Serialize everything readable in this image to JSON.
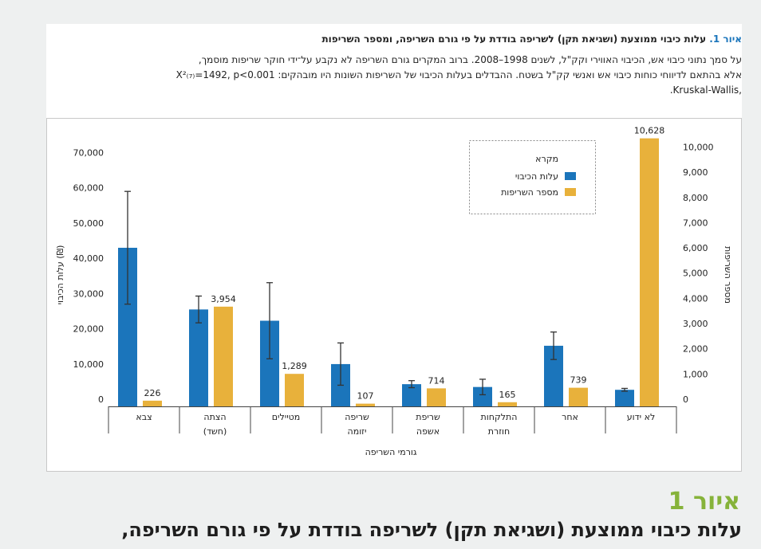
{
  "caption": {
    "label": "איור 1.",
    "title": "עלות כיבוי ממוצעת (ושגיאת תקן) לשריפה בודדת על פי גורם השריפה, ומספר השריפות",
    "lines": [
      "על סמך נתוני כיבוי אש, הכיבוי האווירי וקק\"ל, לשנים 1998–2008. ברוב המקרים גורם השריפה לא נקבע על־ידי חוקר שריפות מוסמך,",
      "אלא בהתאם לדיווחי כוחות כיבוי אש ואנשי קק\"ל בשטח.  ההבדלים בעלות הכיבוי של השריפות השונות היו מובהקים: X²₍₇₎=1492, p<0.001",
      ".Kruskal-Wallis,"
    ]
  },
  "chart_data": {
    "type": "bar",
    "categories": [
      [
        "צבא"
      ],
      [
        "הצתה",
        "(חשד)"
      ],
      [
        "מטיילים"
      ],
      [
        "שריפה",
        "יזומה"
      ],
      [
        "שריפת",
        "אשפה"
      ],
      [
        "התלקחות",
        "חוזרת"
      ],
      [
        "אחר"
      ],
      [
        "לא ידוע"
      ]
    ],
    "series": [
      {
        "name": "עלות הכיבוי",
        "color": "#1b75bb",
        "values": [
          45000,
          27500,
          24300,
          12000,
          6300,
          5500,
          17200,
          4700
        ],
        "errors": [
          16000,
          3800,
          10800,
          6000,
          1000,
          2200,
          3900,
          400
        ]
      },
      {
        "name": "מספר השריפות",
        "color": "#e8b13b",
        "axis": "y2",
        "values": [
          226,
          3954,
          1289,
          107,
          714,
          165,
          739,
          10628
        ],
        "value_labels": [
          "226",
          "3,954",
          "1,289",
          "107",
          "714",
          "165",
          "739",
          "10,628"
        ]
      }
    ],
    "xlabel": "גורמי השריפה",
    "ylabel": "עלות הכיבוי (₪)",
    "y2label": "מספר השריפות",
    "legend_title": "מקרא",
    "legend": "top-right",
    "ylim": [
      0,
      78000
    ],
    "yticks": [
      0,
      {
        "value": 10000,
        "label": "10,000"
      },
      {
        "value": 20000,
        "label": "20,000"
      },
      {
        "value": 30000,
        "label": "30,000"
      },
      {
        "value": 40000,
        "label": "40,000"
      },
      {
        "value": 50000,
        "label": "50,000"
      },
      {
        "value": 60000,
        "label": "60,000"
      },
      {
        "value": 70000,
        "label": "70,000"
      }
    ],
    "y2lim": [
      0,
      10900
    ],
    "y2ticks": [
      0,
      {
        "value": 1000,
        "label": "1,000"
      },
      {
        "value": 2000,
        "label": "2,000"
      },
      {
        "value": 3000,
        "label": "3,000"
      },
      {
        "value": 4000,
        "label": "4,000"
      },
      {
        "value": 5000,
        "label": "5,000"
      },
      {
        "value": 6000,
        "label": "6,000"
      },
      {
        "value": 7000,
        "label": "7,000"
      },
      {
        "value": 8000,
        "label": "8,000"
      },
      {
        "value": 9000,
        "label": "9,000"
      },
      {
        "value": 10000,
        "label": "10,000"
      }
    ],
    "grid": false
  },
  "footer": {
    "label": "איור 1",
    "heading": "עלות כיבוי ממוצעת (ושגיאת תקן) לשריפה בודדת על פי גורם השריפה,"
  }
}
